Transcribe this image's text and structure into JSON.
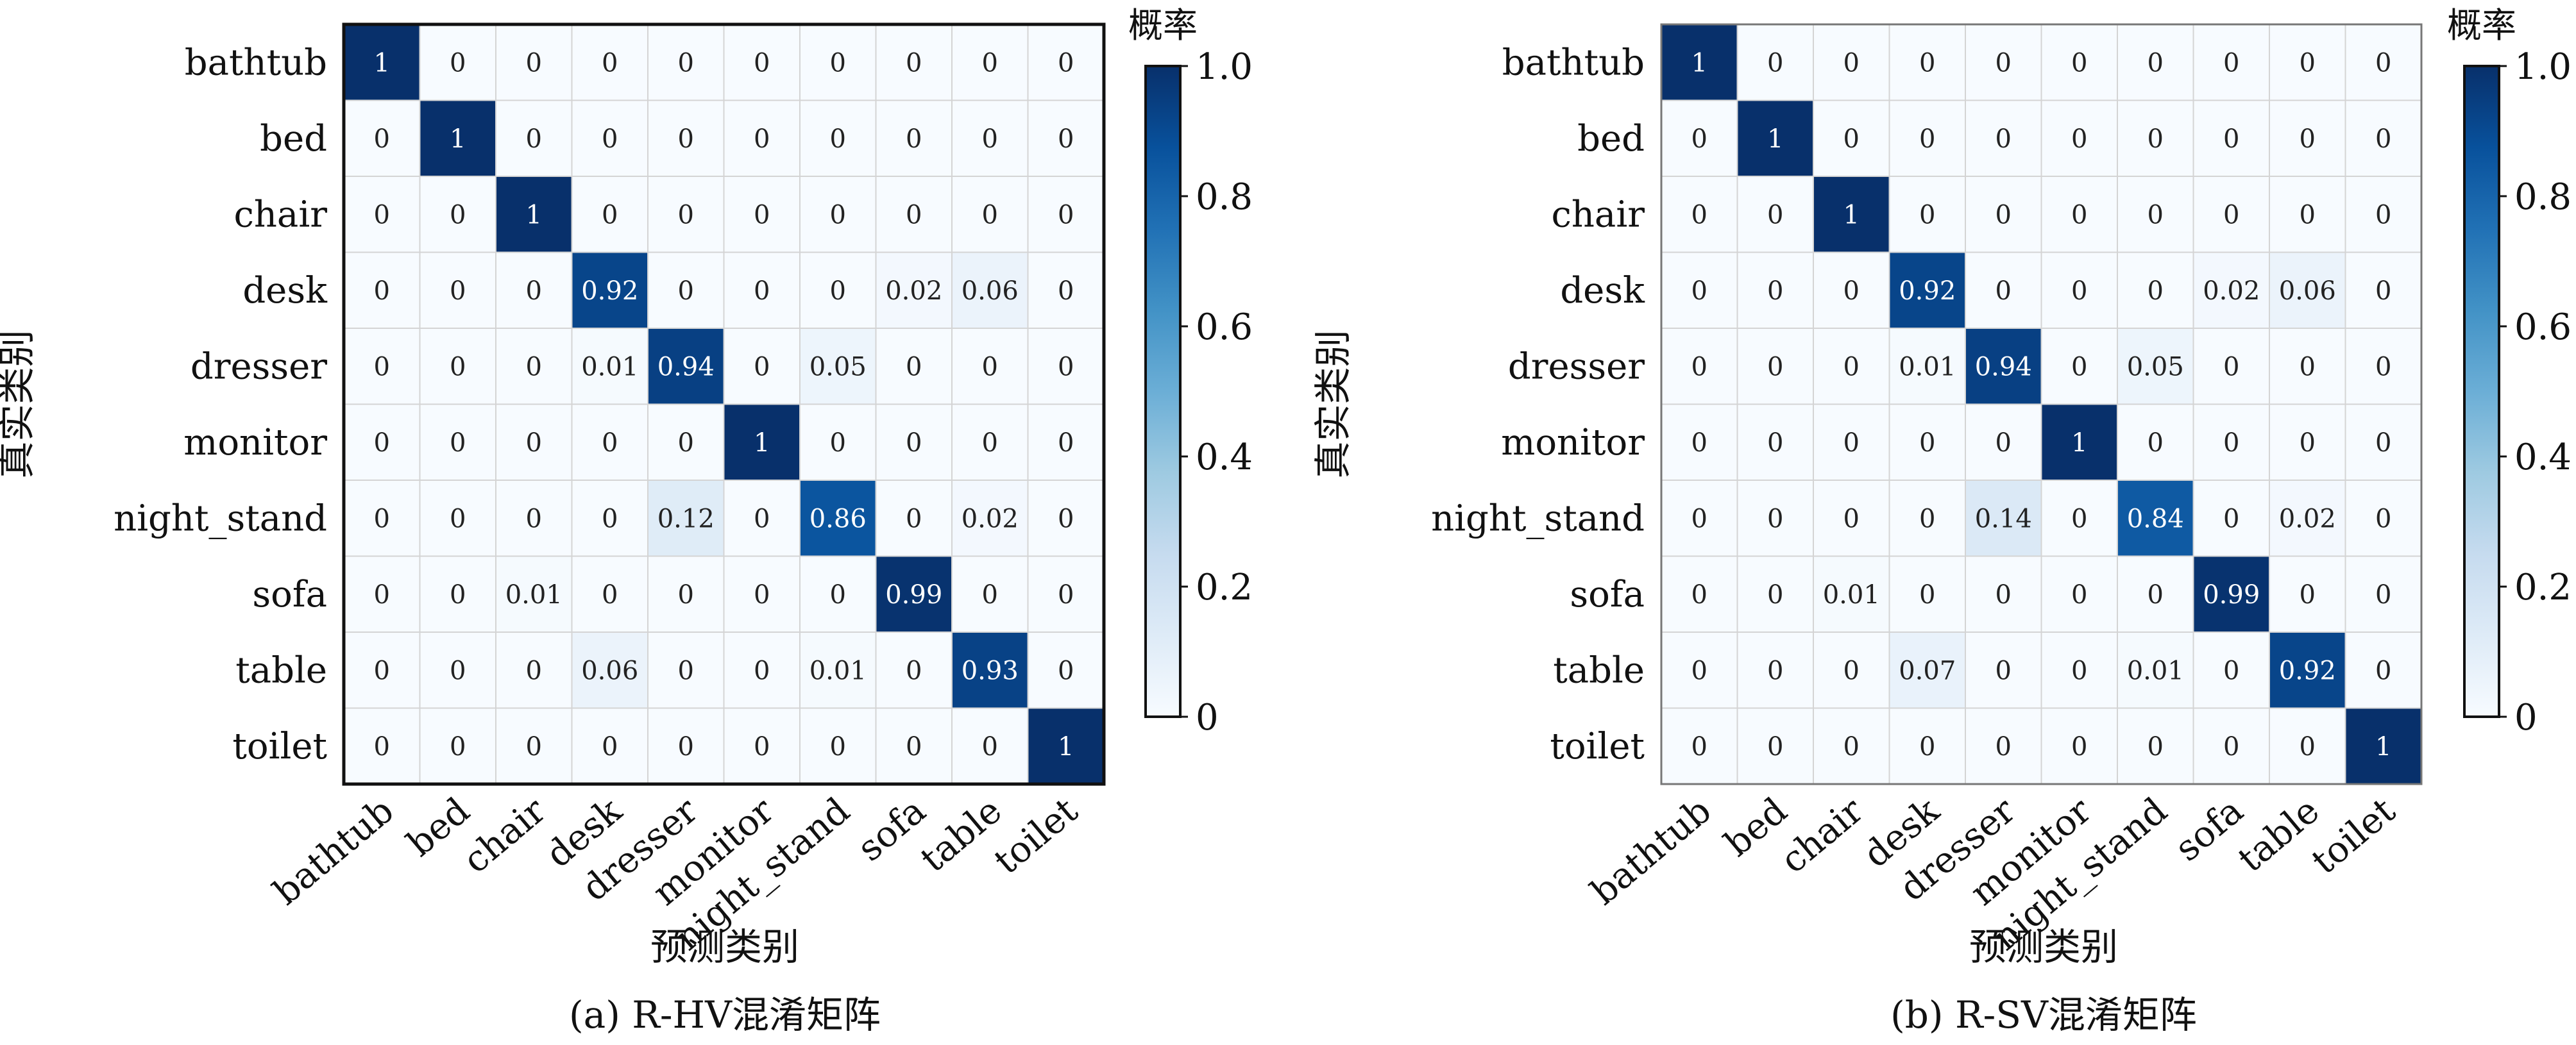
{
  "colors": {
    "scale": [
      "#f7fbff",
      "#deebf7",
      "#c6dbef",
      "#9ecae1",
      "#6baed6",
      "#4292c6",
      "#2171b5",
      "#08519c",
      "#08306b"
    ],
    "grid": "#d4d4d4",
    "text_dark": "#222222",
    "text_light": "#ffffff"
  },
  "chart_data": [
    {
      "type": "heatmap",
      "caption": "(a) R-HV混淆矩阵",
      "xlabel": "预测类别",
      "ylabel": "真实类别",
      "colorbar_title": "概率",
      "colorbar_ticks": [
        "0",
        "0.2",
        "0.4",
        "0.6",
        "0.8",
        "1.0"
      ],
      "colorbar_values": [
        0,
        0.2,
        0.4,
        0.6,
        0.8,
        1.0
      ],
      "vmin": 0,
      "vmax": 1,
      "rows": [
        "bathtub",
        "bed",
        "chair",
        "desk",
        "dresser",
        "monitor",
        "night_stand",
        "sofa",
        "table",
        "toilet"
      ],
      "cols": [
        "bathtub",
        "bed",
        "chair",
        "desk",
        "dresser",
        "monitor",
        "night_stand",
        "sofa",
        "table",
        "toilet"
      ],
      "labels": [
        [
          "1",
          "0",
          "0",
          "0",
          "0",
          "0",
          "0",
          "0",
          "0",
          "0"
        ],
        [
          "0",
          "1",
          "0",
          "0",
          "0",
          "0",
          "0",
          "0",
          "0",
          "0"
        ],
        [
          "0",
          "0",
          "1",
          "0",
          "0",
          "0",
          "0",
          "0",
          "0",
          "0"
        ],
        [
          "0",
          "0",
          "0",
          "0.92",
          "0",
          "0",
          "0",
          "0.02",
          "0.06",
          "0"
        ],
        [
          "0",
          "0",
          "0",
          "0.01",
          "0.94",
          "0",
          "0.05",
          "0",
          "0",
          "0"
        ],
        [
          "0",
          "0",
          "0",
          "0",
          "0",
          "1",
          "0",
          "0",
          "0",
          "0"
        ],
        [
          "0",
          "0",
          "0",
          "0",
          "0.12",
          "0",
          "0.86",
          "0",
          "0.02",
          "0"
        ],
        [
          "0",
          "0",
          "0.01",
          "0",
          "0",
          "0",
          "0",
          "0.99",
          "0",
          "0"
        ],
        [
          "0",
          "0",
          "0",
          "0.06",
          "0",
          "0",
          "0.01",
          "0",
          "0.93",
          "0"
        ],
        [
          "0",
          "0",
          "0",
          "0",
          "0",
          "0",
          "0",
          "0",
          "0",
          "1"
        ]
      ],
      "values": [
        [
          1,
          0,
          0,
          0,
          0,
          0,
          0,
          0,
          0,
          0
        ],
        [
          0,
          1,
          0,
          0,
          0,
          0,
          0,
          0,
          0,
          0
        ],
        [
          0,
          0,
          1,
          0,
          0,
          0,
          0,
          0,
          0,
          0
        ],
        [
          0,
          0,
          0,
          0.92,
          0,
          0,
          0,
          0.02,
          0.06,
          0
        ],
        [
          0,
          0,
          0,
          0.01,
          0.94,
          0,
          0.05,
          0,
          0,
          0
        ],
        [
          0,
          0,
          0,
          0,
          0,
          1,
          0,
          0,
          0,
          0
        ],
        [
          0,
          0,
          0,
          0,
          0.12,
          0,
          0.86,
          0,
          0.02,
          0
        ],
        [
          0,
          0,
          0.01,
          0,
          0,
          0,
          0,
          0.99,
          0,
          0
        ],
        [
          0,
          0,
          0,
          0.06,
          0,
          0,
          0.01,
          0,
          0.93,
          0
        ],
        [
          0,
          0,
          0,
          0,
          0,
          0,
          0,
          0,
          0,
          1
        ]
      ]
    },
    {
      "type": "heatmap",
      "caption": "(b) R-SV混淆矩阵",
      "xlabel": "预测类别",
      "ylabel": "真实类别",
      "colorbar_title": "概率",
      "colorbar_ticks": [
        "0",
        "0.2",
        "0.4",
        "0.6",
        "0.8",
        "1.0"
      ],
      "colorbar_values": [
        0,
        0.2,
        0.4,
        0.6,
        0.8,
        1.0
      ],
      "vmin": 0,
      "vmax": 1,
      "rows": [
        "bathtub",
        "bed",
        "chair",
        "desk",
        "dresser",
        "monitor",
        "night_stand",
        "sofa",
        "table",
        "toilet"
      ],
      "cols": [
        "bathtub",
        "bed",
        "chair",
        "desk",
        "dresser",
        "monitor",
        "night_stand",
        "sofa",
        "table",
        "toilet"
      ],
      "labels": [
        [
          "1",
          "0",
          "0",
          "0",
          "0",
          "0",
          "0",
          "0",
          "0",
          "0"
        ],
        [
          "0",
          "1",
          "0",
          "0",
          "0",
          "0",
          "0",
          "0",
          "0",
          "0"
        ],
        [
          "0",
          "0",
          "1",
          "0",
          "0",
          "0",
          "0",
          "0",
          "0",
          "0"
        ],
        [
          "0",
          "0",
          "0",
          "0.92",
          "0",
          "0",
          "0",
          "0.02",
          "0.06",
          "0"
        ],
        [
          "0",
          "0",
          "0",
          "0.01",
          "0.94",
          "0",
          "0.05",
          "0",
          "0",
          "0"
        ],
        [
          "0",
          "0",
          "0",
          "0",
          "0",
          "1",
          "0",
          "0",
          "0",
          "0"
        ],
        [
          "0",
          "0",
          "0",
          "0",
          "0.14",
          "0",
          "0.84",
          "0",
          "0.02",
          "0"
        ],
        [
          "0",
          "0",
          "0.01",
          "0",
          "0",
          "0",
          "0",
          "0.99",
          "0",
          "0"
        ],
        [
          "0",
          "0",
          "0",
          "0.07",
          "0",
          "0",
          "0.01",
          "0",
          "0.92",
          "0"
        ],
        [
          "0",
          "0",
          "0",
          "0",
          "0",
          "0",
          "0",
          "0",
          "0",
          "1"
        ]
      ],
      "values": [
        [
          1,
          0,
          0,
          0,
          0,
          0,
          0,
          0,
          0,
          0
        ],
        [
          0,
          1,
          0,
          0,
          0,
          0,
          0,
          0,
          0,
          0
        ],
        [
          0,
          0,
          1,
          0,
          0,
          0,
          0,
          0,
          0,
          0
        ],
        [
          0,
          0,
          0,
          0.92,
          0,
          0,
          0,
          0.02,
          0.06,
          0
        ],
        [
          0,
          0,
          0,
          0.01,
          0.94,
          0,
          0.05,
          0,
          0,
          0
        ],
        [
          0,
          0,
          0,
          0,
          0,
          1,
          0,
          0,
          0,
          0
        ],
        [
          0,
          0,
          0,
          0,
          0.14,
          0,
          0.84,
          0,
          0.02,
          0
        ],
        [
          0,
          0,
          0.01,
          0,
          0,
          0,
          0,
          0.99,
          0,
          0
        ],
        [
          0,
          0,
          0,
          0.07,
          0,
          0,
          0.01,
          0,
          0.92,
          0
        ],
        [
          0,
          0,
          0,
          0,
          0,
          0,
          0,
          0,
          0,
          1
        ]
      ]
    }
  ]
}
